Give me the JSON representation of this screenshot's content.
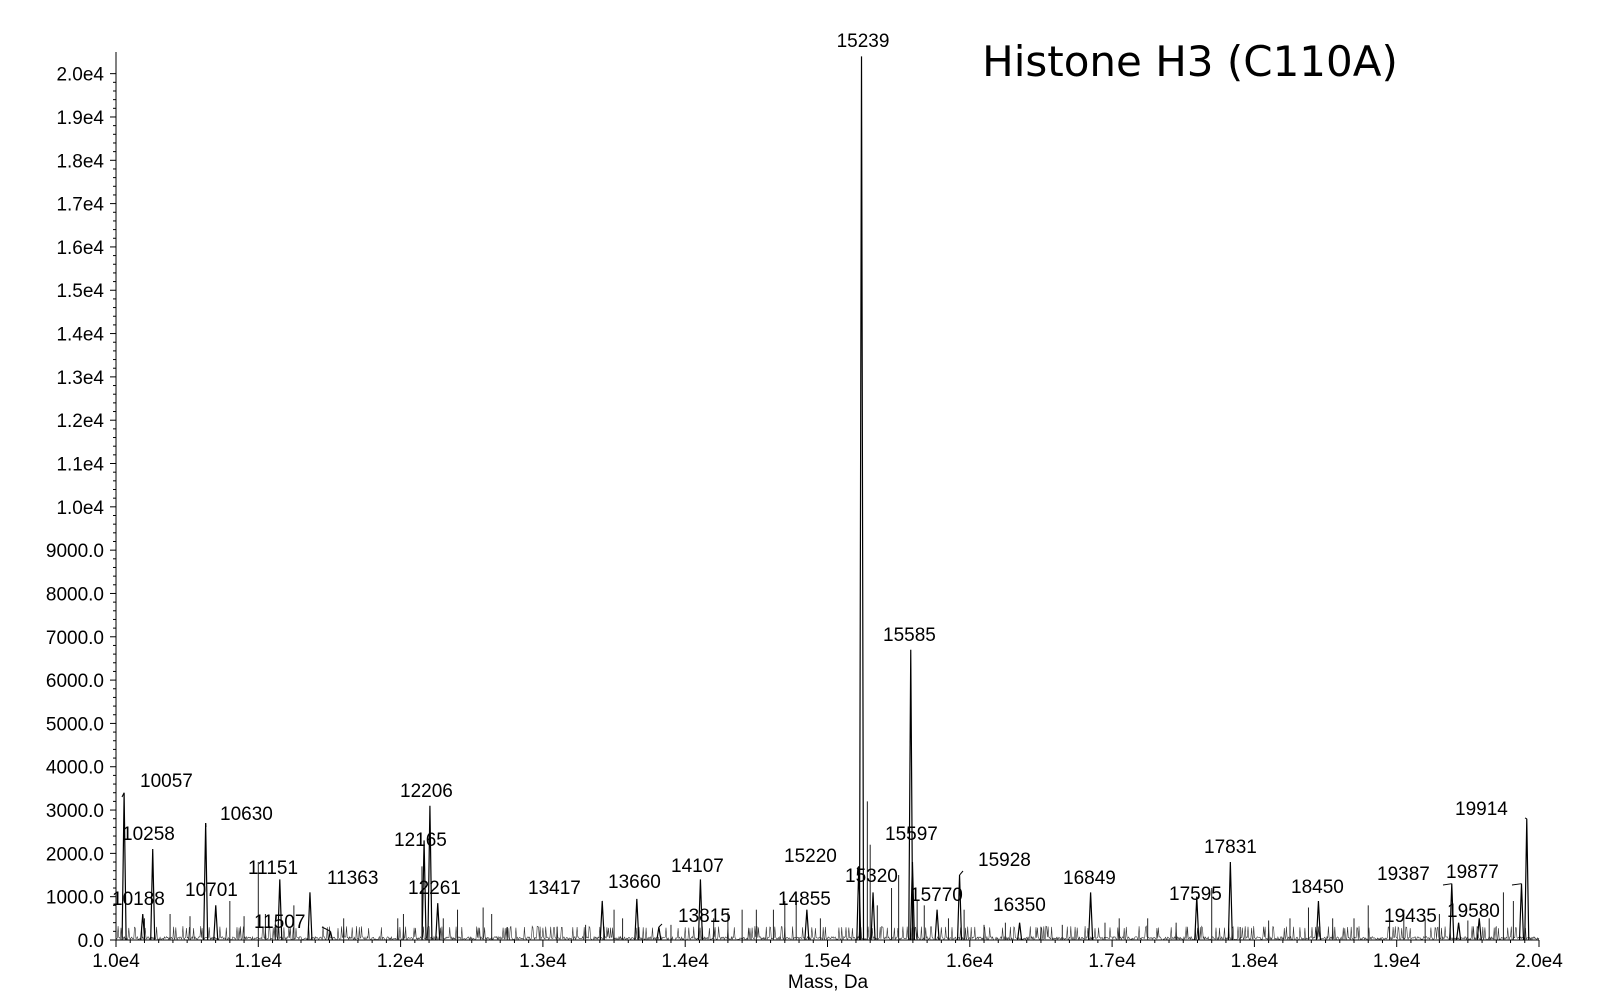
{
  "chart_data": {
    "type": "line",
    "title": "Histone H3 (C110A)",
    "xlabel": "Mass, Da",
    "ylabel": "",
    "xlim": [
      10000,
      20000
    ],
    "ylim": [
      0,
      20500
    ],
    "grid": false,
    "x_ticks": [
      {
        "value": 10000,
        "label": "1.0e4"
      },
      {
        "value": 11000,
        "label": "1.1e4"
      },
      {
        "value": 12000,
        "label": "1.2e4"
      },
      {
        "value": 13000,
        "label": "1.3e4"
      },
      {
        "value": 14000,
        "label": "1.4e4"
      },
      {
        "value": 15000,
        "label": "1.5e4"
      },
      {
        "value": 16000,
        "label": "1.6e4"
      },
      {
        "value": 17000,
        "label": "1.7e4"
      },
      {
        "value": 18000,
        "label": "1.8e4"
      },
      {
        "value": 19000,
        "label": "1.9e4"
      },
      {
        "value": 20000,
        "label": "2.0e4"
      }
    ],
    "y_ticks": [
      {
        "value": 0,
        "label": "0.0"
      },
      {
        "value": 1000,
        "label": "1000.0"
      },
      {
        "value": 2000,
        "label": "2000.0"
      },
      {
        "value": 3000,
        "label": "3000.0"
      },
      {
        "value": 4000,
        "label": "4000.0"
      },
      {
        "value": 5000,
        "label": "5000.0"
      },
      {
        "value": 6000,
        "label": "6000.0"
      },
      {
        "value": 7000,
        "label": "7000.0"
      },
      {
        "value": 8000,
        "label": "8000.0"
      },
      {
        "value": 9000,
        "label": "9000.0"
      },
      {
        "value": 10000,
        "label": "1.0e4"
      },
      {
        "value": 11000,
        "label": "1.1e4"
      },
      {
        "value": 12000,
        "label": "1.2e4"
      },
      {
        "value": 13000,
        "label": "1.3e4"
      },
      {
        "value": 14000,
        "label": "1.4e4"
      },
      {
        "value": 15000,
        "label": "1.5e4"
      },
      {
        "value": 16000,
        "label": "1.6e4"
      },
      {
        "value": 17000,
        "label": "1.7e4"
      },
      {
        "value": 18000,
        "label": "1.8e4"
      },
      {
        "value": 19000,
        "label": "1.9e4"
      },
      {
        "value": 20000,
        "label": "2.0e4"
      }
    ],
    "labeled_peaks": [
      {
        "mass": 10057,
        "intensity": 3400,
        "label": "10057"
      },
      {
        "mass": 10188,
        "intensity": 600,
        "label": "10188"
      },
      {
        "mass": 10258,
        "intensity": 2100,
        "label": "10258"
      },
      {
        "mass": 10630,
        "intensity": 2700,
        "label": "10630"
      },
      {
        "mass": 10701,
        "intensity": 800,
        "label": "10701"
      },
      {
        "mass": 11151,
        "intensity": 1400,
        "label": "11151"
      },
      {
        "mass": 11363,
        "intensity": 1100,
        "label": "11363"
      },
      {
        "mass": 11507,
        "intensity": 200,
        "label": "11507"
      },
      {
        "mass": 12165,
        "intensity": 2300,
        "label": "12165"
      },
      {
        "mass": 12206,
        "intensity": 3100,
        "label": "12206"
      },
      {
        "mass": 12261,
        "intensity": 850,
        "label": "12261"
      },
      {
        "mass": 13417,
        "intensity": 900,
        "label": "13417"
      },
      {
        "mass": 13660,
        "intensity": 950,
        "label": "13660"
      },
      {
        "mass": 13815,
        "intensity": 300,
        "label": "13815"
      },
      {
        "mass": 14107,
        "intensity": 1400,
        "label": "14107"
      },
      {
        "mass": 14855,
        "intensity": 700,
        "label": "14855"
      },
      {
        "mass": 15220,
        "intensity": 1700,
        "label": "15220"
      },
      {
        "mass": 15239,
        "intensity": 20400,
        "label": "15239"
      },
      {
        "mass": 15320,
        "intensity": 1100,
        "label": "15320"
      },
      {
        "mass": 15585,
        "intensity": 6700,
        "label": "15585"
      },
      {
        "mass": 15597,
        "intensity": 1800,
        "label": "15597"
      },
      {
        "mass": 15770,
        "intensity": 700,
        "label": "15770"
      },
      {
        "mass": 15928,
        "intensity": 1500,
        "label": "15928"
      },
      {
        "mass": 16350,
        "intensity": 400,
        "label": "16350"
      },
      {
        "mass": 16849,
        "intensity": 1100,
        "label": "16849"
      },
      {
        "mass": 17595,
        "intensity": 1000,
        "label": "17595"
      },
      {
        "mass": 17831,
        "intensity": 1800,
        "label": "17831"
      },
      {
        "mass": 18450,
        "intensity": 900,
        "label": "18450"
      },
      {
        "mass": 19387,
        "intensity": 1300,
        "label": "19387"
      },
      {
        "mass": 19435,
        "intensity": 400,
        "label": "19435"
      },
      {
        "mass": 19580,
        "intensity": 500,
        "label": "19580"
      },
      {
        "mass": 19877,
        "intensity": 1300,
        "label": "19877"
      },
      {
        "mass": 19914,
        "intensity": 2800,
        "label": "19914"
      }
    ],
    "minor_peaks": [
      {
        "mass": 10200,
        "intensity": 500
      },
      {
        "mass": 10380,
        "intensity": 600
      },
      {
        "mass": 10520,
        "intensity": 550
      },
      {
        "mass": 10800,
        "intensity": 900
      },
      {
        "mass": 10900,
        "intensity": 550
      },
      {
        "mass": 11000,
        "intensity": 1800
      },
      {
        "mass": 11050,
        "intensity": 600
      },
      {
        "mass": 11120,
        "intensity": 450
      },
      {
        "mass": 11250,
        "intensity": 800
      },
      {
        "mass": 11600,
        "intensity": 500
      },
      {
        "mass": 11980,
        "intensity": 500
      },
      {
        "mass": 12020,
        "intensity": 600
      },
      {
        "mass": 12150,
        "intensity": 1700
      },
      {
        "mass": 12300,
        "intensity": 500
      },
      {
        "mass": 12400,
        "intensity": 700
      },
      {
        "mass": 12580,
        "intensity": 750
      },
      {
        "mass": 12640,
        "intensity": 600
      },
      {
        "mass": 12750,
        "intensity": 300
      },
      {
        "mass": 13100,
        "intensity": 300
      },
      {
        "mass": 13300,
        "intensity": 350
      },
      {
        "mass": 13500,
        "intensity": 700
      },
      {
        "mass": 13560,
        "intensity": 500
      },
      {
        "mass": 13900,
        "intensity": 350
      },
      {
        "mass": 14200,
        "intensity": 500
      },
      {
        "mass": 14300,
        "intensity": 650
      },
      {
        "mass": 14400,
        "intensity": 700
      },
      {
        "mass": 14500,
        "intensity": 700
      },
      {
        "mass": 14620,
        "intensity": 700
      },
      {
        "mass": 14700,
        "intensity": 900
      },
      {
        "mass": 14780,
        "intensity": 1000
      },
      {
        "mass": 14950,
        "intensity": 500
      },
      {
        "mass": 15280,
        "intensity": 3200
      },
      {
        "mass": 15300,
        "intensity": 2200
      },
      {
        "mass": 15350,
        "intensity": 800
      },
      {
        "mass": 15450,
        "intensity": 1200
      },
      {
        "mass": 15500,
        "intensity": 1500
      },
      {
        "mass": 15630,
        "intensity": 900
      },
      {
        "mass": 15680,
        "intensity": 800
      },
      {
        "mass": 15850,
        "intensity": 500
      },
      {
        "mass": 15960,
        "intensity": 700
      },
      {
        "mass": 16100,
        "intensity": 350
      },
      {
        "mass": 16250,
        "intensity": 400
      },
      {
        "mass": 16500,
        "intensity": 300
      },
      {
        "mass": 16650,
        "intensity": 350
      },
      {
        "mass": 16950,
        "intensity": 400
      },
      {
        "mass": 17050,
        "intensity": 500
      },
      {
        "mass": 17250,
        "intensity": 500
      },
      {
        "mass": 17450,
        "intensity": 400
      },
      {
        "mass": 17700,
        "intensity": 1200
      },
      {
        "mass": 17900,
        "intensity": 300
      },
      {
        "mass": 18100,
        "intensity": 450
      },
      {
        "mass": 18250,
        "intensity": 500
      },
      {
        "mass": 18380,
        "intensity": 750
      },
      {
        "mass": 18550,
        "intensity": 500
      },
      {
        "mass": 18700,
        "intensity": 500
      },
      {
        "mass": 18800,
        "intensity": 800
      },
      {
        "mass": 18950,
        "intensity": 600
      },
      {
        "mass": 19050,
        "intensity": 700
      },
      {
        "mass": 19200,
        "intensity": 500
      },
      {
        "mass": 19300,
        "intensity": 600
      },
      {
        "mass": 19500,
        "intensity": 450
      },
      {
        "mass": 19650,
        "intensity": 500
      },
      {
        "mass": 19750,
        "intensity": 1100
      },
      {
        "mass": 19820,
        "intensity": 900
      }
    ]
  }
}
